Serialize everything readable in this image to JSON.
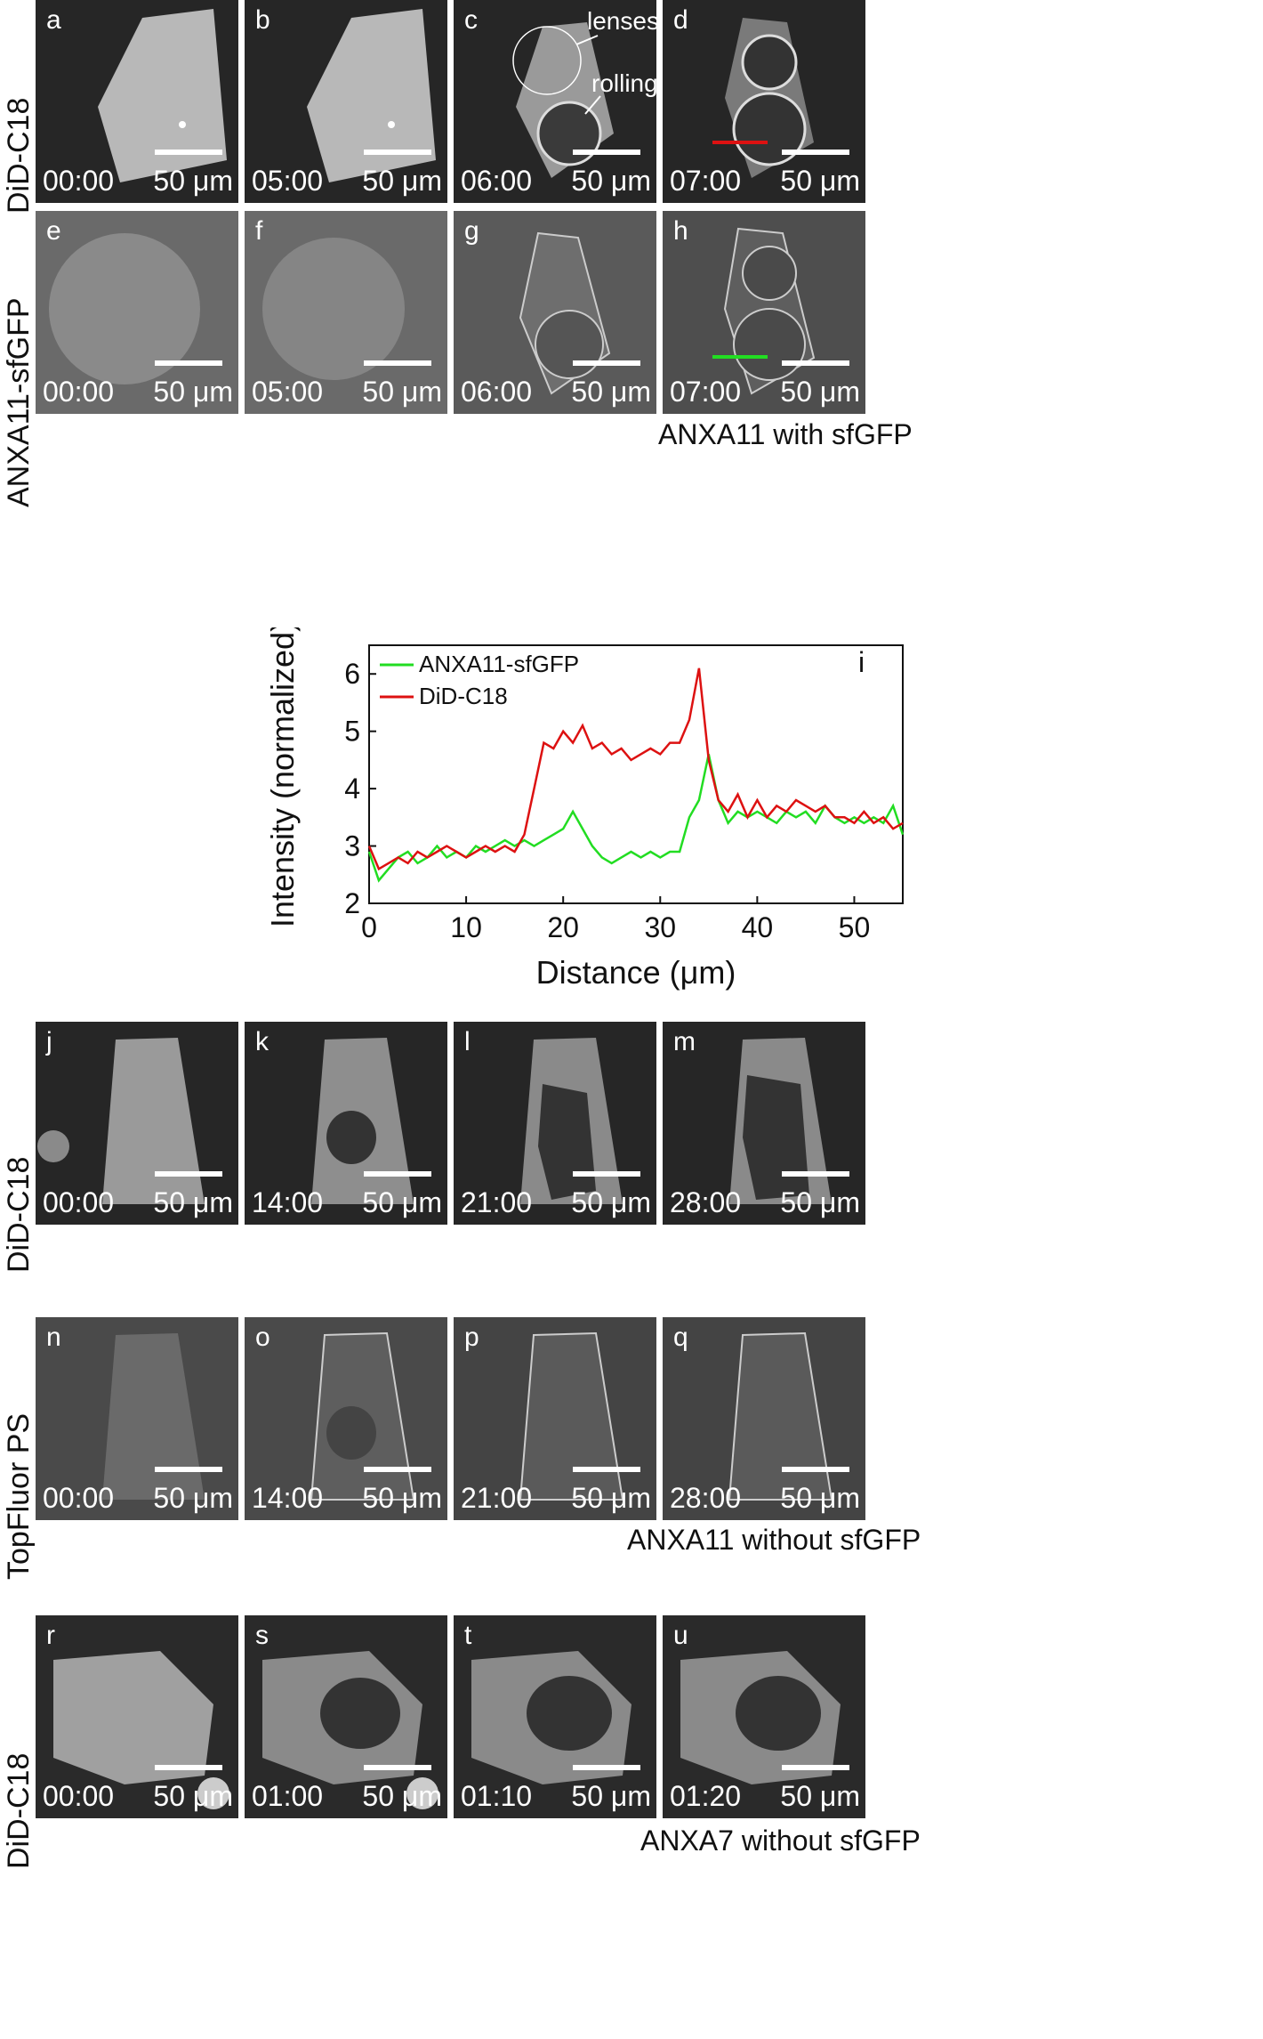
{
  "rows": [
    {
      "row_label": "DiD-C18",
      "panels": [
        {
          "label": "a",
          "time": "00:00",
          "scale": "50 μm"
        },
        {
          "label": "b",
          "time": "05:00",
          "scale": "50 μm"
        },
        {
          "label": "c",
          "time": "06:00",
          "scale": "50 μm"
        },
        {
          "label": "d",
          "time": "07:00",
          "scale": "50 μm"
        }
      ]
    },
    {
      "row_label": "ANXA11-sfGFP",
      "panels": [
        {
          "label": "e",
          "time": "00:00",
          "scale": "50 μm"
        },
        {
          "label": "f",
          "time": "05:00",
          "scale": "50 μm"
        },
        {
          "label": "g",
          "time": "06:00",
          "scale": "50 μm"
        },
        {
          "label": "h",
          "time": "07:00",
          "scale": "50 μm"
        }
      ]
    },
    {
      "row_label": "DiD-C18",
      "panels": [
        {
          "label": "j",
          "time": "00:00",
          "scale": "50 μm"
        },
        {
          "label": "k",
          "time": "14:00",
          "scale": "50 μm"
        },
        {
          "label": "l",
          "time": "21:00",
          "scale": "50 μm"
        },
        {
          "label": "m",
          "time": "28:00",
          "scale": "50 μm"
        }
      ]
    },
    {
      "row_label": "TopFluor PS",
      "panels": [
        {
          "label": "n",
          "time": "00:00",
          "scale": "50 μm"
        },
        {
          "label": "o",
          "time": "14:00",
          "scale": "50 μm"
        },
        {
          "label": "p",
          "time": "21:00",
          "scale": "50 μm"
        },
        {
          "label": "q",
          "time": "28:00",
          "scale": "50 μm"
        }
      ]
    },
    {
      "row_label": "DiD-C18",
      "panels": [
        {
          "label": "r",
          "time": "00:00",
          "scale": "50 μm"
        },
        {
          "label": "s",
          "time": "01:00",
          "scale": "50 μm"
        },
        {
          "label": "t",
          "time": "01:10",
          "scale": "50 μm"
        },
        {
          "label": "u",
          "time": "01:20",
          "scale": "50 μm"
        }
      ]
    }
  ],
  "annotations": {
    "lenses": "lenses",
    "rolling": "rolling"
  },
  "captions": {
    "c1": "ANXA11 with sfGFP",
    "c2": "ANXA11 without sfGFP",
    "c3": "ANXA7 without sfGFP"
  },
  "colors": {
    "green": "#22dd22",
    "red": "#dd1111"
  },
  "chart_data": {
    "type": "line",
    "panel_label": "i",
    "xlabel": "Distance (μm)",
    "ylabel": "Intensity (normalized)",
    "xlim": [
      0,
      55
    ],
    "ylim": [
      2,
      6.5
    ],
    "xticks": [
      0,
      10,
      20,
      30,
      40,
      50
    ],
    "yticks": [
      2,
      3,
      4,
      5,
      6
    ],
    "legend_position": "top-left",
    "series": [
      {
        "name": "ANXA11-sfGFP",
        "color": "#22dd22",
        "x": [
          0,
          1,
          2,
          3,
          4,
          5,
          6,
          7,
          8,
          9,
          10,
          11,
          12,
          13,
          14,
          15,
          16,
          17,
          18,
          19,
          20,
          21,
          22,
          23,
          24,
          25,
          26,
          27,
          28,
          29,
          30,
          31,
          32,
          33,
          34,
          35,
          36,
          37,
          38,
          39,
          40,
          41,
          42,
          43,
          44,
          45,
          46,
          47,
          48,
          49,
          50,
          51,
          52,
          53,
          54,
          55
        ],
        "y": [
          2.9,
          2.4,
          2.6,
          2.8,
          2.9,
          2.7,
          2.8,
          3.0,
          2.8,
          2.9,
          2.8,
          3.0,
          2.9,
          3.0,
          3.1,
          3.0,
          3.1,
          3.0,
          3.1,
          3.2,
          3.3,
          3.6,
          3.3,
          3.0,
          2.8,
          2.7,
          2.8,
          2.9,
          2.8,
          2.9,
          2.8,
          2.9,
          2.9,
          3.5,
          3.8,
          4.6,
          3.8,
          3.4,
          3.6,
          3.5,
          3.6,
          3.5,
          3.4,
          3.6,
          3.5,
          3.6,
          3.4,
          3.7,
          3.5,
          3.4,
          3.5,
          3.4,
          3.5,
          3.4,
          3.7,
          3.2
        ]
      },
      {
        "name": "DiD-C18",
        "color": "#dd1111",
        "x": [
          0,
          1,
          2,
          3,
          4,
          5,
          6,
          7,
          8,
          9,
          10,
          11,
          12,
          13,
          14,
          15,
          16,
          17,
          18,
          19,
          20,
          21,
          22,
          23,
          24,
          25,
          26,
          27,
          28,
          29,
          30,
          31,
          32,
          33,
          34,
          35,
          36,
          37,
          38,
          39,
          40,
          41,
          42,
          43,
          44,
          45,
          46,
          47,
          48,
          49,
          50,
          51,
          52,
          53,
          54,
          55
        ],
        "y": [
          3.0,
          2.6,
          2.7,
          2.8,
          2.7,
          2.9,
          2.8,
          2.9,
          3.0,
          2.9,
          2.8,
          2.9,
          3.0,
          2.9,
          3.0,
          2.9,
          3.2,
          4.0,
          4.8,
          4.7,
          5.0,
          4.8,
          5.1,
          4.7,
          4.8,
          4.6,
          4.7,
          4.5,
          4.6,
          4.7,
          4.6,
          4.8,
          4.8,
          5.2,
          6.1,
          4.5,
          3.8,
          3.6,
          3.9,
          3.5,
          3.8,
          3.5,
          3.7,
          3.6,
          3.8,
          3.7,
          3.6,
          3.7,
          3.5,
          3.5,
          3.4,
          3.6,
          3.4,
          3.5,
          3.3,
          3.4
        ]
      }
    ]
  }
}
